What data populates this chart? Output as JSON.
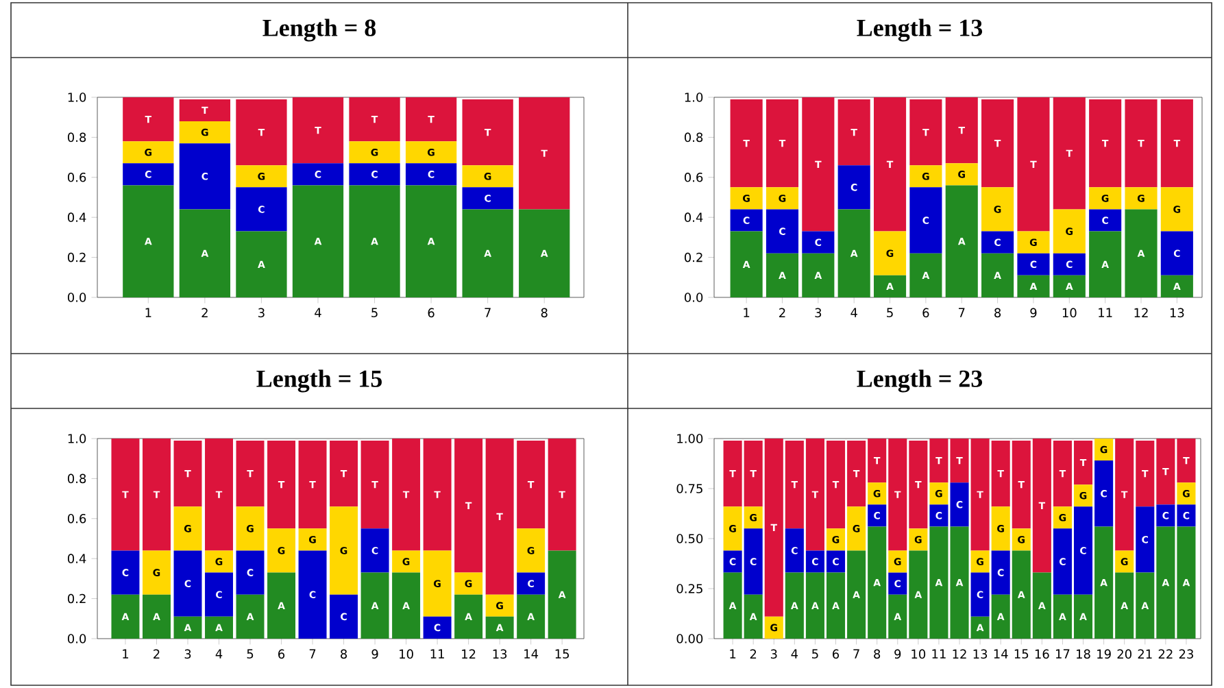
{
  "chart_data": [
    {
      "type": "bar",
      "stacked": true,
      "title": "Length = 8",
      "categories": [
        "1",
        "2",
        "3",
        "4",
        "5",
        "6",
        "7",
        "8"
      ],
      "ylim": [
        0,
        1
      ],
      "yticks": [
        {
          "value": 0,
          "label": "0.0"
        },
        {
          "value": 0.2,
          "label": "0.2"
        },
        {
          "value": 0.4,
          "label": "0.4"
        },
        {
          "value": 0.6,
          "label": "0.6"
        },
        {
          "value": 0.8,
          "label": "0.8"
        },
        {
          "value": 1,
          "label": "1.0"
        }
      ],
      "series": [
        {
          "name": "A",
          "color": "#228b22",
          "values": [
            0.56,
            0.44,
            0.33,
            0.56,
            0.56,
            0.56,
            0.44,
            0.44
          ]
        },
        {
          "name": "C",
          "color": "#0000cd",
          "values": [
            0.11,
            0.33,
            0.22,
            0.11,
            0.11,
            0.11,
            0.11,
            0
          ]
        },
        {
          "name": "G",
          "color": "#ffd700",
          "values": [
            0.11,
            0.11,
            0.11,
            0,
            0.11,
            0.11,
            0.11,
            0
          ]
        },
        {
          "name": "T",
          "color": "#dc143c",
          "values": [
            0.22,
            0.11,
            0.33,
            0.33,
            0.22,
            0.22,
            0.33,
            0.56
          ]
        }
      ]
    },
    {
      "type": "bar",
      "stacked": true,
      "title": "Length = 13",
      "categories": [
        "1",
        "2",
        "3",
        "4",
        "5",
        "6",
        "7",
        "8",
        "9",
        "10",
        "11",
        "12",
        "13"
      ],
      "ylim": [
        0,
        1
      ],
      "yticks": [
        {
          "value": 0,
          "label": "0.0"
        },
        {
          "value": 0.2,
          "label": "0.2"
        },
        {
          "value": 0.4,
          "label": "0.4"
        },
        {
          "value": 0.6,
          "label": "0.6"
        },
        {
          "value": 0.8,
          "label": "0.8"
        },
        {
          "value": 1,
          "label": "1.0"
        }
      ],
      "series": [
        {
          "name": "A",
          "color": "#228b22",
          "values": [
            0.33,
            0.22,
            0.22,
            0.44,
            0.11,
            0.22,
            0.56,
            0.22,
            0.11,
            0.11,
            0.33,
            0.44,
            0.11
          ]
        },
        {
          "name": "C",
          "color": "#0000cd",
          "values": [
            0.11,
            0.22,
            0.11,
            0.22,
            0,
            0.33,
            0,
            0.11,
            0.11,
            0.11,
            0.11,
            0,
            0.22
          ]
        },
        {
          "name": "G",
          "color": "#ffd700",
          "values": [
            0.11,
            0.11,
            0,
            0,
            0.22,
            0.11,
            0.11,
            0.22,
            0.11,
            0.22,
            0.11,
            0.11,
            0.22
          ]
        },
        {
          "name": "T",
          "color": "#dc143c",
          "values": [
            0.44,
            0.44,
            0.67,
            0.33,
            0.67,
            0.33,
            0.33,
            0.44,
            0.67,
            0.56,
            0.44,
            0.44,
            0.44
          ]
        }
      ]
    },
    {
      "type": "bar",
      "stacked": true,
      "title": "Length = 15",
      "categories": [
        "1",
        "2",
        "3",
        "4",
        "5",
        "6",
        "7",
        "8",
        "9",
        "10",
        "11",
        "12",
        "13",
        "14",
        "15"
      ],
      "ylim": [
        0,
        1
      ],
      "yticks": [
        {
          "value": 0,
          "label": "0.0"
        },
        {
          "value": 0.2,
          "label": "0.2"
        },
        {
          "value": 0.4,
          "label": "0.4"
        },
        {
          "value": 0.6,
          "label": "0.6"
        },
        {
          "value": 0.8,
          "label": "0.8"
        },
        {
          "value": 1,
          "label": "1.0"
        }
      ],
      "series": [
        {
          "name": "A",
          "color": "#228b22",
          "values": [
            0.22,
            0.22,
            0.11,
            0.11,
            0.22,
            0.33,
            0,
            0,
            0.33,
            0.33,
            0,
            0.22,
            0.11,
            0.22,
            0.44
          ]
        },
        {
          "name": "C",
          "color": "#0000cd",
          "values": [
            0.22,
            0,
            0.33,
            0.22,
            0.22,
            0,
            0.44,
            0.22,
            0.22,
            0,
            0.11,
            0,
            0,
            0.11,
            0
          ]
        },
        {
          "name": "G",
          "color": "#ffd700",
          "values": [
            0,
            0.22,
            0.22,
            0.11,
            0.22,
            0.22,
            0.11,
            0.44,
            0,
            0.11,
            0.33,
            0.11,
            0.11,
            0.22,
            0
          ]
        },
        {
          "name": "T",
          "color": "#dc143c",
          "values": [
            0.56,
            0.56,
            0.33,
            0.56,
            0.33,
            0.44,
            0.44,
            0.33,
            0.44,
            0.56,
            0.56,
            0.67,
            0.78,
            0.44,
            0.56
          ]
        }
      ]
    },
    {
      "type": "bar",
      "stacked": true,
      "title": "Length = 23",
      "categories": [
        "1",
        "2",
        "3",
        "4",
        "5",
        "6",
        "7",
        "8",
        "9",
        "10",
        "11",
        "12",
        "13",
        "14",
        "15",
        "16",
        "17",
        "18",
        "19",
        "20",
        "21",
        "22",
        "23"
      ],
      "ylim": [
        0,
        1
      ],
      "yticks": [
        {
          "value": 0,
          "label": "0.00"
        },
        {
          "value": 0.25,
          "label": "0.25"
        },
        {
          "value": 0.5,
          "label": "0.50"
        },
        {
          "value": 0.75,
          "label": "0.75"
        },
        {
          "value": 1,
          "label": "1.00"
        }
      ],
      "series": [
        {
          "name": "A",
          "color": "#228b22",
          "values": [
            0.33,
            0.22,
            0,
            0.33,
            0.33,
            0.33,
            0.44,
            0.56,
            0.22,
            0.44,
            0.56,
            0.56,
            0.11,
            0.22,
            0.44,
            0.33,
            0.22,
            0.22,
            0.56,
            0.33,
            0.33,
            0.56,
            0.56
          ]
        },
        {
          "name": "C",
          "color": "#0000cd",
          "values": [
            0.11,
            0.33,
            0,
            0.22,
            0.11,
            0.11,
            0,
            0.11,
            0.11,
            0,
            0.11,
            0.22,
            0.22,
            0.22,
            0,
            0,
            0.33,
            0.44,
            0.33,
            0,
            0.33,
            0.11,
            0.11
          ]
        },
        {
          "name": "G",
          "color": "#ffd700",
          "values": [
            0.22,
            0.11,
            0.11,
            0,
            0,
            0.11,
            0.22,
            0.11,
            0.11,
            0.11,
            0.11,
            0,
            0.11,
            0.22,
            0.11,
            0,
            0.11,
            0.11,
            0.11,
            0.11,
            0,
            0,
            0.11
          ]
        },
        {
          "name": "T",
          "color": "#dc143c",
          "values": [
            0.33,
            0.33,
            0.89,
            0.44,
            0.56,
            0.44,
            0.33,
            0.22,
            0.56,
            0.44,
            0.22,
            0.22,
            0.56,
            0.33,
            0.44,
            0.67,
            0.33,
            0.22,
            0,
            0.56,
            0.33,
            0.33,
            0.22
          ]
        }
      ]
    }
  ]
}
